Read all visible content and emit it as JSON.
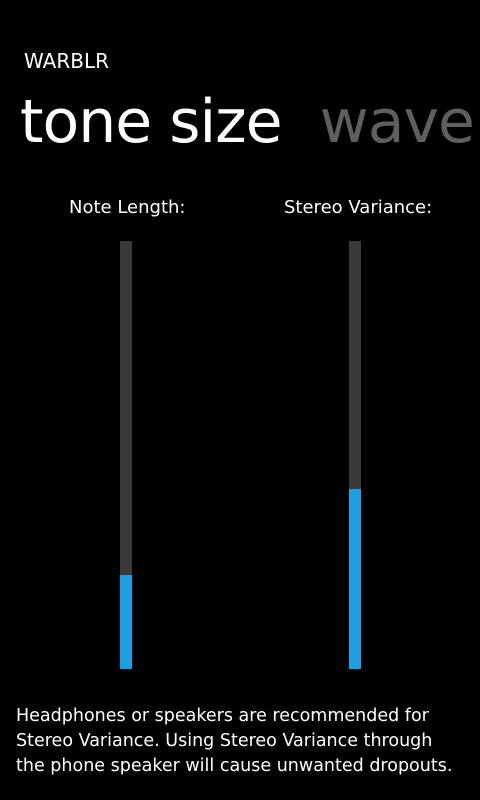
{
  "app": {
    "title": "WARBLR"
  },
  "pivot": {
    "tabs": [
      {
        "label": "tone size",
        "selected": true
      },
      {
        "label": "wave",
        "selected": false
      }
    ]
  },
  "sliders": [
    {
      "label": "Note Length:",
      "value_fraction": 0.22,
      "accent": "#1ba1e2",
      "track": "#3a3a3a"
    },
    {
      "label": "Stereo Variance:",
      "value_fraction": 0.42,
      "accent": "#1ba1e2",
      "track": "#3a3a3a"
    }
  ],
  "footer": {
    "note": "Headphones or speakers are recommended for Stereo Variance. Using Stereo Variance through the phone speaker will cause unwanted dropouts."
  }
}
